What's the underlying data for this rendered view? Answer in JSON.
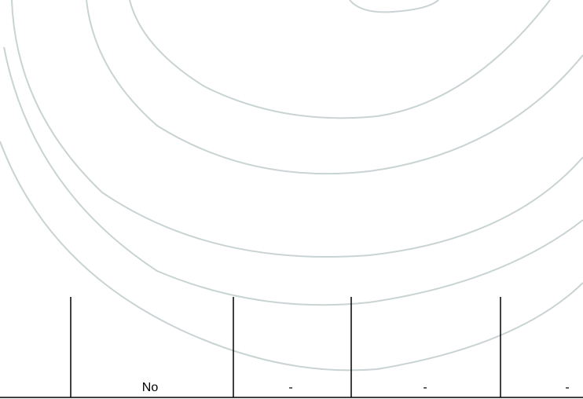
{
  "table": {
    "rows": [
      [
        "No",
        "-",
        "-",
        "-"
      ]
    ]
  }
}
